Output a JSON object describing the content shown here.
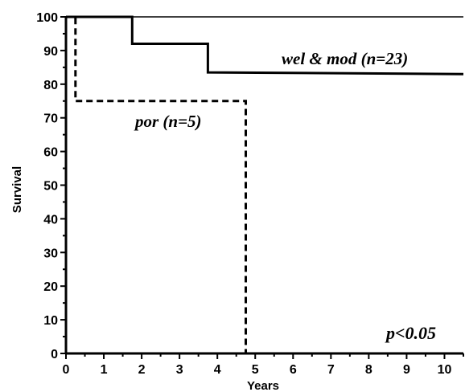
{
  "chart_data": {
    "type": "line",
    "step": true,
    "title": "",
    "xlabel": "Years",
    "ylabel": "Survival",
    "xlim": [
      0,
      10.5
    ],
    "ylim": [
      0,
      100
    ],
    "xticks": [
      "0",
      "1",
      "2",
      "3",
      "4",
      "5",
      "6",
      "7",
      "8",
      "9",
      "10"
    ],
    "yticks": [
      "0",
      "10",
      "20",
      "30",
      "40",
      "50",
      "60",
      "70",
      "80",
      "90",
      "100"
    ],
    "grid": false,
    "series": [
      {
        "name": "wel & mod (n=23)",
        "style": "solid",
        "x": [
          0,
          1.75,
          1.75,
          3.75,
          3.75,
          10.5
        ],
        "y": [
          100,
          100,
          92,
          92,
          83.5,
          83
        ]
      },
      {
        "name": "por (n=5)",
        "style": "dashed",
        "x": [
          0,
          0.25,
          0.25,
          4.75,
          4.75
        ],
        "y": [
          100,
          100,
          75,
          75,
          0
        ]
      }
    ],
    "annotations": [
      {
        "text": "p<0.05"
      }
    ]
  }
}
